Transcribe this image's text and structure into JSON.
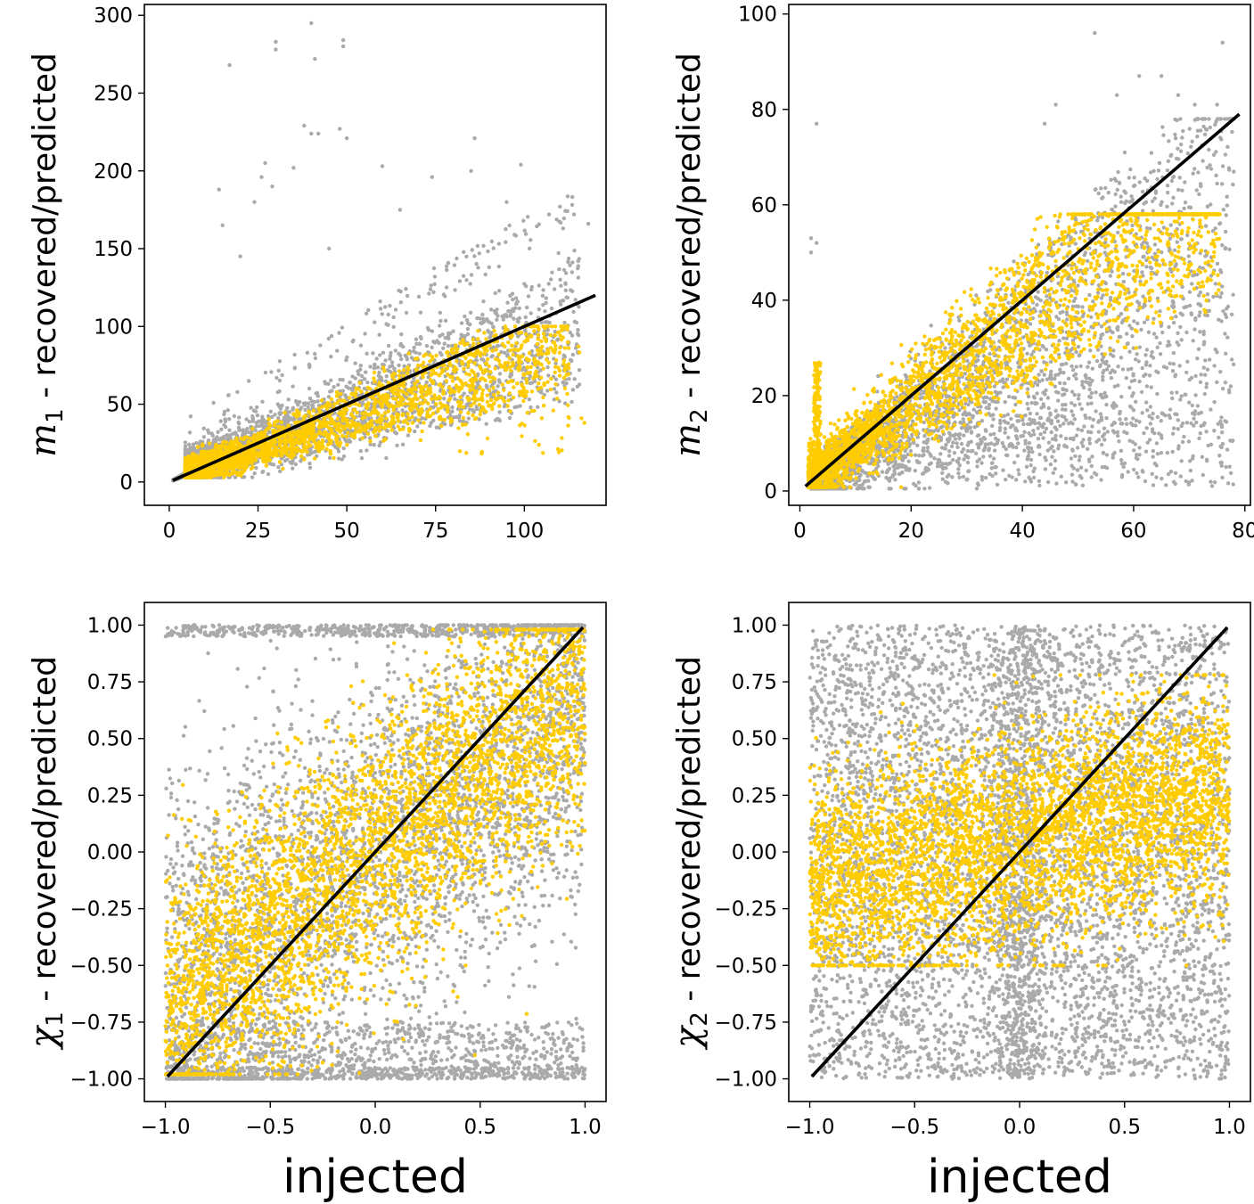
{
  "figure": {
    "xlabel_bottom": "injected"
  },
  "colors": {
    "recovered": "#aaaaaa",
    "predicted": "#ffcc00",
    "identity_line": "#000000"
  },
  "chart_data": [
    {
      "type": "scatter",
      "panel": "m1",
      "ylabel_symbol": "m",
      "ylabel_subscript": "1",
      "ylabel_rest": " -  recovered/predicted",
      "xlabel": "",
      "xlim": [
        -7,
        123
      ],
      "ylim": [
        -15,
        307
      ],
      "xticks": [
        0,
        25,
        50,
        75,
        100
      ],
      "xtick_labels": [
        "0",
        "25",
        "50",
        "75",
        "100"
      ],
      "yticks": [
        0,
        50,
        100,
        150,
        200,
        250,
        300
      ],
      "ytick_labels": [
        "0",
        "50",
        "100",
        "150",
        "200",
        "250",
        "300"
      ],
      "identity_line": {
        "from": [
          1,
          1
        ],
        "to": [
          120,
          120
        ]
      },
      "outlier_points": [
        [
          17,
          268
        ],
        [
          30,
          278
        ],
        [
          30,
          283
        ],
        [
          40,
          295
        ],
        [
          41,
          272
        ],
        [
          49,
          280
        ],
        [
          49,
          284
        ],
        [
          38,
          229
        ],
        [
          40,
          224
        ],
        [
          42,
          224
        ],
        [
          48,
          227
        ],
        [
          50,
          221
        ],
        [
          27,
          205
        ],
        [
          35,
          202
        ],
        [
          26,
          196
        ],
        [
          29,
          190
        ],
        [
          14,
          188
        ],
        [
          24,
          180
        ],
        [
          15,
          165
        ],
        [
          60,
          203
        ],
        [
          74,
          196
        ],
        [
          85,
          200
        ],
        [
          99,
          204
        ],
        [
          86,
          221
        ],
        [
          65,
          175
        ],
        [
          95,
          180
        ],
        [
          110,
          177
        ],
        [
          114,
          172
        ],
        [
          118,
          166
        ],
        [
          20,
          145
        ],
        [
          45,
          150
        ]
      ],
      "series": [
        {
          "name": "recovered",
          "color": "#aaaaaa"
        },
        {
          "name": "predicted",
          "color": "#ffcc00"
        }
      ]
    },
    {
      "type": "scatter",
      "panel": "m2",
      "ylabel_symbol": "m",
      "ylabel_subscript": "2",
      "ylabel_rest": " -  recovered/predicted",
      "xlabel": "",
      "xlim": [
        -2,
        81
      ],
      "ylim": [
        -3,
        102
      ],
      "xticks": [
        0,
        20,
        40,
        60,
        80
      ],
      "xtick_labels": [
        "0",
        "20",
        "40",
        "60",
        "80"
      ],
      "yticks": [
        0,
        20,
        40,
        60,
        80,
        100
      ],
      "ytick_labels": [
        "0",
        "20",
        "40",
        "60",
        "80",
        "100"
      ],
      "identity_line": {
        "from": [
          1,
          1
        ],
        "to": [
          79,
          79
        ]
      },
      "outlier_points": [
        [
          53,
          96
        ],
        [
          76,
          94
        ],
        [
          3,
          77
        ],
        [
          2,
          53
        ],
        [
          2,
          50
        ],
        [
          3,
          52
        ],
        [
          61,
          87
        ],
        [
          65,
          87
        ],
        [
          57,
          83
        ],
        [
          68,
          83
        ],
        [
          71,
          81
        ],
        [
          75,
          81
        ],
        [
          46,
          81
        ],
        [
          44,
          77
        ]
      ],
      "series": [
        {
          "name": "recovered",
          "color": "#aaaaaa"
        },
        {
          "name": "predicted",
          "color": "#ffcc00"
        }
      ]
    },
    {
      "type": "scatter",
      "panel": "chi1",
      "ylabel_symbol": "χ",
      "ylabel_subscript": "1",
      "ylabel_rest": " -  recovered/predicted",
      "xlabel": "injected",
      "xlim": [
        -1.1,
        1.1
      ],
      "ylim": [
        -1.1,
        1.1
      ],
      "xticks": [
        -1.0,
        -0.5,
        0.0,
        0.5,
        1.0
      ],
      "xtick_labels": [
        "−1.0",
        "−0.5",
        "0.0",
        "0.5",
        "1.0"
      ],
      "yticks": [
        -1.0,
        -0.75,
        -0.5,
        -0.25,
        0.0,
        0.25,
        0.5,
        0.75,
        1.0
      ],
      "ytick_labels": [
        "−1.00",
        "−0.75",
        "−0.50",
        "−0.25",
        "0.00",
        "0.25",
        "0.50",
        "0.75",
        "1.00"
      ],
      "identity_line": {
        "from": [
          -0.99,
          -0.99
        ],
        "to": [
          0.99,
          0.99
        ]
      },
      "series": [
        {
          "name": "recovered",
          "color": "#aaaaaa"
        },
        {
          "name": "predicted",
          "color": "#ffcc00"
        }
      ]
    },
    {
      "type": "scatter",
      "panel": "chi2",
      "ylabel_symbol": "χ",
      "ylabel_subscript": "2",
      "ylabel_rest": " -  recovered/predicted",
      "xlabel": "injected",
      "xlim": [
        -1.1,
        1.1
      ],
      "ylim": [
        -1.1,
        1.1
      ],
      "xticks": [
        -1.0,
        -0.5,
        0.0,
        0.5,
        1.0
      ],
      "xtick_labels": [
        "−1.0",
        "−0.5",
        "0.0",
        "0.5",
        "1.0"
      ],
      "yticks": [
        -1.0,
        -0.75,
        -0.5,
        -0.25,
        0.0,
        0.25,
        0.5,
        0.75,
        1.0
      ],
      "ytick_labels": [
        "−1.00",
        "−0.75",
        "−0.50",
        "−0.25",
        "0.00",
        "0.25",
        "0.50",
        "0.75",
        "1.00"
      ],
      "identity_line": {
        "from": [
          -0.99,
          -0.99
        ],
        "to": [
          0.99,
          0.99
        ]
      },
      "series": [
        {
          "name": "recovered",
          "color": "#aaaaaa"
        },
        {
          "name": "predicted",
          "color": "#ffcc00"
        }
      ]
    }
  ]
}
